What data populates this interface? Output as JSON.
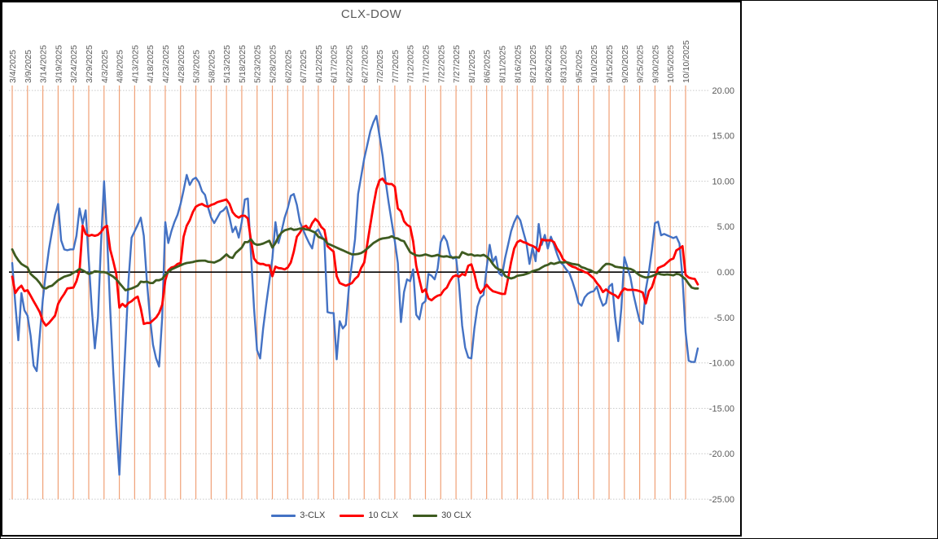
{
  "window": {
    "background_color": "#FFFFFF",
    "border_color": "#000000"
  },
  "chart_data": {
    "type": "line",
    "title": "CLX-DOW",
    "title_color": "#595959",
    "axis_label_color": "#595959",
    "grid": {
      "vertical_color": "#F0A177",
      "horizontal_color": "#C9C9C9",
      "horizontal_style": "dotted",
      "vertical_on": true,
      "horizontal_on": true
    },
    "zero_line_color": "#000000",
    "legend_position": "bottom",
    "x_tick_interval_days": 5,
    "x_tick_labels": [
      "3/4/2025",
      "3/9/2025",
      "3/14/2025",
      "3/19/2025",
      "3/24/2025",
      "3/29/2025",
      "4/3/2025",
      "4/8/2025",
      "4/13/2025",
      "4/18/2025",
      "4/23/2025",
      "4/28/2025",
      "5/3/2025",
      "5/8/2025",
      "5/13/2025",
      "5/18/2025",
      "5/23/2025",
      "5/28/2025",
      "6/2/2025",
      "6/7/2025",
      "6/12/2025",
      "6/17/2025",
      "6/22/2025",
      "6/27/2025",
      "7/2/2025",
      "7/7/2025",
      "7/12/2025",
      "7/17/2025",
      "7/22/2025",
      "7/27/2025",
      "8/1/2025",
      "8/6/2025",
      "8/11/2025",
      "8/16/2025",
      "8/21/2025",
      "8/26/2025",
      "8/31/2025",
      "9/5/2025",
      "9/10/2025",
      "9/15/2025",
      "9/20/2025",
      "9/25/2025",
      "9/30/2025",
      "10/5/2025",
      "10/10/2025"
    ],
    "y_tick_labels": [
      "20.00",
      "15.00",
      "10.00",
      "5.00",
      "0.00",
      "-5.00",
      "-10.00",
      "-15.00",
      "-20.00",
      "-25.00"
    ],
    "y_tick_values": [
      20,
      15,
      10,
      5,
      0,
      -5,
      -10,
      -15,
      -20,
      -25
    ],
    "ylim": [
      -25,
      20
    ],
    "series": [
      {
        "name": "3-CLX",
        "color": "#4472C4",
        "start_date": "3/4/2025",
        "frequency": "daily",
        "values": [
          1.0,
          -3.5,
          -7.5,
          -2.3,
          -4.2,
          -4.8,
          -7.0,
          -10.3,
          -10.9,
          -7.0,
          -3.0,
          0.0,
          2.5,
          4.5,
          6.3,
          7.5,
          3.5,
          2.5,
          2.4,
          2.5,
          2.5,
          4.0,
          7.0,
          5.3,
          6.8,
          1.3,
          -4.0,
          -8.4,
          -5.0,
          3.0,
          10.0,
          4.0,
          -4.0,
          -11.0,
          -17.0,
          -22.3,
          -15.0,
          -8.0,
          -1.0,
          3.8,
          4.5,
          5.2,
          6.0,
          4.0,
          -1.0,
          -5.0,
          -8.0,
          -9.5,
          -10.4,
          -5.0,
          5.5,
          3.2,
          4.5,
          5.5,
          6.3,
          7.5,
          9.0,
          10.7,
          9.6,
          10.2,
          10.4,
          9.9,
          8.9,
          8.5,
          7.1,
          6.0,
          5.4,
          6.0,
          6.6,
          6.8,
          7.2,
          6.0,
          4.4,
          5.0,
          3.8,
          5.5,
          8.0,
          8.1,
          2.0,
          -4.0,
          -8.6,
          -9.5,
          -6.2,
          -3.5,
          -1.0,
          1.5,
          5.5,
          3.2,
          4.5,
          6.0,
          7.0,
          8.4,
          8.6,
          7.4,
          5.5,
          4.7,
          3.9,
          3.2,
          2.6,
          4.4,
          4.7,
          4.0,
          3.5,
          -4.4,
          -4.5,
          -4.5,
          -9.6,
          -5.4,
          -6.2,
          -5.8,
          -1.7,
          1.0,
          3.6,
          8.6,
          10.5,
          12.5,
          14.0,
          15.5,
          16.5,
          17.2,
          15.0,
          12.8,
          10.0,
          7.6,
          5.5,
          3.4,
          1.0,
          -5.5,
          -2.2,
          -0.8,
          -1.0,
          0.3,
          -4.7,
          -5.2,
          -3.5,
          -3.2,
          -0.2,
          -0.4,
          -0.8,
          0.4,
          3.3,
          4.0,
          3.4,
          1.9,
          1.5,
          1.6,
          -1.4,
          -5.9,
          -8.3,
          -9.4,
          -9.5,
          -6.2,
          -3.8,
          -2.8,
          -2.5,
          0.5,
          3.0,
          1.1,
          1.7,
          -0.1,
          -0.4,
          1.5,
          3.0,
          4.5,
          5.5,
          6.2,
          5.7,
          4.4,
          3.2,
          0.9,
          2.7,
          1.2,
          5.3,
          3.0,
          4.1,
          2.6,
          3.9,
          3.0,
          2.0,
          1.1,
          0.8,
          0.3,
          -0.1,
          -1.0,
          -2.1,
          -3.4,
          -3.7,
          -2.8,
          -2.4,
          -2.2,
          -2.1,
          -1.6,
          -2.8,
          -3.7,
          -3.4,
          -1.6,
          -1.3,
          -5.0,
          -7.6,
          -4.0,
          1.65,
          0.5,
          -0.6,
          -2.5,
          -4.0,
          -5.4,
          -5.7,
          -1.95,
          0.0,
          2.5,
          5.4,
          5.55,
          4.05,
          4.2,
          4.05,
          3.9,
          3.75,
          3.9,
          3.15,
          -0.6,
          -6.6,
          -9.75,
          -9.9,
          -9.9,
          -8.4
        ]
      },
      {
        "name": "10 CLX",
        "color": "#FF0000",
        "start_date": "3/4/2025",
        "frequency": "daily",
        "values": [
          -0.5,
          -2.3,
          -1.8,
          -1.5,
          -2.1,
          -2.0,
          -2.6,
          -3.2,
          -3.8,
          -4.4,
          -5.4,
          -5.9,
          -5.6,
          -5.2,
          -4.8,
          -3.5,
          -2.9,
          -2.4,
          -1.8,
          -1.75,
          -1.7,
          -1.0,
          0.2,
          5.1,
          4.2,
          4.0,
          4.1,
          4.0,
          4.1,
          4.4,
          4.9,
          5.1,
          2.5,
          1.2,
          -0.2,
          -3.9,
          -3.5,
          -3.8,
          -3.4,
          -3.2,
          -2.9,
          -2.7,
          -4.0,
          -5.7,
          -5.6,
          -5.6,
          -5.3,
          -5.0,
          -4.5,
          -3.6,
          -0.9,
          0.2,
          0.5,
          0.6,
          0.9,
          1.0,
          3.9,
          5.1,
          5.7,
          6.6,
          7.2,
          7.4,
          7.5,
          7.3,
          7.2,
          7.4,
          7.5,
          7.7,
          7.8,
          7.9,
          8.0,
          7.5,
          6.6,
          6.2,
          6.0,
          6.2,
          6.2,
          5.9,
          3.5,
          1.5,
          1.05,
          0.9,
          0.9,
          0.75,
          0.75,
          -0.45,
          0.6,
          0.45,
          0.4,
          0.3,
          0.5,
          1.05,
          2.25,
          3.9,
          4.35,
          4.95,
          5.1,
          4.65,
          5.4,
          5.85,
          5.55,
          4.95,
          4.65,
          2.85,
          2.55,
          2.25,
          -0.45,
          -1.2,
          -1.35,
          -1.5,
          -1.35,
          -1.2,
          -0.75,
          -0.45,
          0.45,
          1.05,
          3.1,
          5.2,
          7.3,
          9.1,
          10.1,
          10.3,
          9.8,
          9.7,
          9.7,
          9.4,
          7.0,
          6.7,
          5.6,
          5.2,
          5.0,
          3.4,
          0.7,
          -0.8,
          -2.2,
          -1.9,
          -2.9,
          -3.1,
          -2.8,
          -2.6,
          -2.5,
          -2.0,
          -1.7,
          -1.0,
          -0.5,
          -0.35,
          -0.5,
          -0.2,
          -0.35,
          0.7,
          0.85,
          -0.2,
          -1.7,
          -2.3,
          -1.9,
          -1.4,
          -1.8,
          -2.1,
          -2.2,
          -2.3,
          -2.4,
          -2.4,
          -0.7,
          1.1,
          2.6,
          3.3,
          3.5,
          3.3,
          3.2,
          3.0,
          2.9,
          2.7,
          2.3,
          3.6,
          3.5,
          3.5,
          3.5,
          3.3,
          2.6,
          2.1,
          1.4,
          1.1,
          0.8,
          0.6,
          0.5,
          0.3,
          0.2,
          0.0,
          -0.1,
          -0.4,
          -0.7,
          -1.2,
          -1.6,
          -2.2,
          -1.9,
          -2.2,
          -2.4,
          -2.55,
          -2.85,
          -2.2,
          -1.8,
          -1.95,
          -1.95,
          -1.95,
          -2.0,
          -2.1,
          -2.25,
          -3.45,
          -2.1,
          -1.65,
          -0.6,
          0.45,
          0.6,
          0.75,
          1.05,
          1.35,
          1.5,
          2.4,
          2.6,
          2.85,
          -0.3,
          -0.6,
          -0.7,
          -0.75,
          -1.35
        ]
      },
      {
        "name": "30 CLX",
        "color": "#3E5B20",
        "start_date": "3/4/2025",
        "frequency": "daily",
        "values": [
          2.5,
          1.8,
          1.3,
          0.9,
          0.7,
          0.5,
          -0.2,
          -0.5,
          -0.8,
          -1.2,
          -1.7,
          -1.8,
          -1.6,
          -1.5,
          -1.2,
          -0.9,
          -0.7,
          -0.5,
          -0.4,
          -0.3,
          -0.05,
          0.1,
          0.35,
          0.2,
          0.0,
          -0.2,
          -0.1,
          0.1,
          0.05,
          0.0,
          0.0,
          -0.1,
          -0.3,
          -0.5,
          -0.8,
          -1.2,
          -1.6,
          -2.0,
          -1.9,
          -1.8,
          -1.65,
          -1.5,
          -1.05,
          -1.1,
          -1.05,
          -1.2,
          -1.2,
          -0.9,
          -0.9,
          -0.75,
          -0.3,
          0.0,
          0.3,
          0.45,
          0.6,
          0.75,
          0.9,
          1.0,
          1.05,
          1.1,
          1.2,
          1.25,
          1.26,
          1.26,
          1.14,
          1.1,
          1.05,
          1.2,
          1.35,
          1.65,
          1.95,
          1.65,
          1.56,
          2.1,
          2.4,
          2.7,
          3.3,
          3.3,
          3.6,
          3.15,
          3.0,
          3.05,
          3.15,
          3.3,
          3.45,
          2.7,
          3.2,
          3.9,
          4.35,
          4.6,
          4.7,
          4.8,
          4.65,
          4.7,
          4.8,
          4.8,
          4.7,
          4.65,
          4.5,
          4.35,
          3.9,
          3.75,
          3.6,
          3.15,
          3.0,
          2.85,
          2.7,
          2.55,
          2.4,
          2.25,
          2.1,
          1.95,
          1.95,
          2.0,
          2.1,
          2.3,
          2.6,
          2.9,
          3.2,
          3.4,
          3.6,
          3.7,
          3.75,
          3.8,
          3.95,
          3.75,
          3.7,
          3.5,
          3.4,
          2.8,
          2.2,
          2.0,
          1.85,
          1.8,
          1.85,
          1.95,
          1.85,
          1.75,
          1.8,
          1.9,
          1.75,
          1.7,
          1.75,
          1.65,
          1.6,
          1.65,
          1.6,
          2.2,
          2.05,
          1.9,
          1.95,
          1.8,
          1.85,
          1.8,
          1.9,
          1.7,
          1.4,
          0.9,
          0.5,
          0.3,
          0.2,
          -0.4,
          -0.6,
          -0.7,
          -0.6,
          -0.4,
          -0.35,
          -0.3,
          -0.2,
          -0.06,
          0.1,
          0.2,
          0.3,
          0.5,
          0.7,
          0.8,
          1.0,
          0.9,
          1.0,
          1.1,
          1.05,
          1.1,
          1.0,
          0.9,
          0.85,
          0.8,
          0.55,
          0.45,
          0.3,
          0.2,
          0.0,
          -0.1,
          0.2,
          0.6,
          0.9,
          0.9,
          0.8,
          0.6,
          0.55,
          0.5,
          0.45,
          0.4,
          0.35,
          0.2,
          -0.1,
          -0.35,
          -0.5,
          -0.6,
          -0.55,
          -0.45,
          -0.3,
          -0.15,
          -0.25,
          -0.3,
          -0.25,
          -0.3,
          -0.35,
          -0.2,
          -0.25,
          -0.5,
          -0.8,
          -1.3,
          -1.7,
          -1.8,
          -1.8
        ]
      }
    ]
  }
}
